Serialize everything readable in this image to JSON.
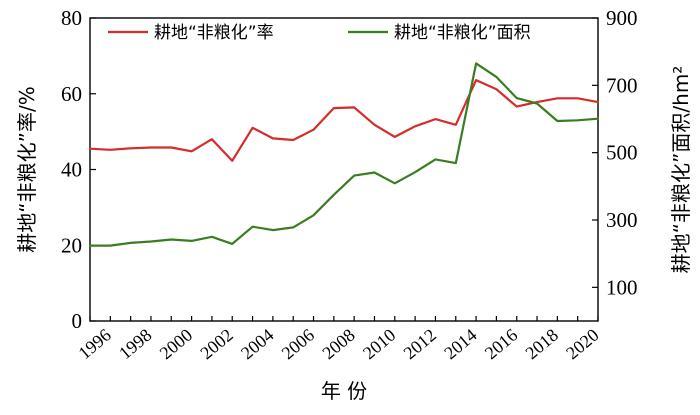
{
  "chart_data": {
    "type": "line",
    "x": [
      1995,
      1996,
      1997,
      1998,
      1999,
      2000,
      2001,
      2002,
      2003,
      2004,
      2005,
      2006,
      2007,
      2008,
      2009,
      2010,
      2011,
      2012,
      2013,
      2014,
      2015,
      2016,
      2017,
      2018,
      2019,
      2020
    ],
    "xticks": [
      1996,
      1998,
      2000,
      2002,
      2004,
      2006,
      2008,
      2010,
      2012,
      2014,
      2016,
      2018,
      2020
    ],
    "xlabel": "年 份",
    "ylabel_left": "耕地“非粮化”率/%",
    "ylabel_right": "耕地“非粮化”面积/hm²",
    "ylim_left": [
      0,
      80
    ],
    "ylim_right": [
      0,
      900
    ],
    "yticks_left": [
      0,
      20,
      40,
      60,
      80
    ],
    "yticks_right": [
      100,
      300,
      500,
      700,
      900
    ],
    "legend_position": "top",
    "grid": false,
    "series": [
      {
        "name": "耕地“非粮化”率",
        "axis": "left",
        "color": "#d62b2b",
        "values": [
          45.5,
          45.2,
          45.6,
          45.8,
          45.8,
          44.8,
          48.0,
          42.3,
          51.0,
          48.2,
          47.8,
          50.5,
          56.2,
          56.4,
          51.8,
          48.6,
          51.4,
          53.3,
          51.8,
          63.6,
          61.2,
          56.6,
          57.8,
          58.8,
          58.8,
          57.8
        ]
      },
      {
        "name": "耕地“非粮化”面积",
        "axis": "right",
        "color": "#3a7d20",
        "values": [
          224,
          224,
          232,
          236,
          242,
          238,
          250,
          229,
          280,
          270,
          278,
          314,
          375,
          432,
          441,
          409,
          442,
          480,
          469,
          765,
          725,
          662,
          646,
          594,
          596,
          601
        ]
      }
    ]
  }
}
